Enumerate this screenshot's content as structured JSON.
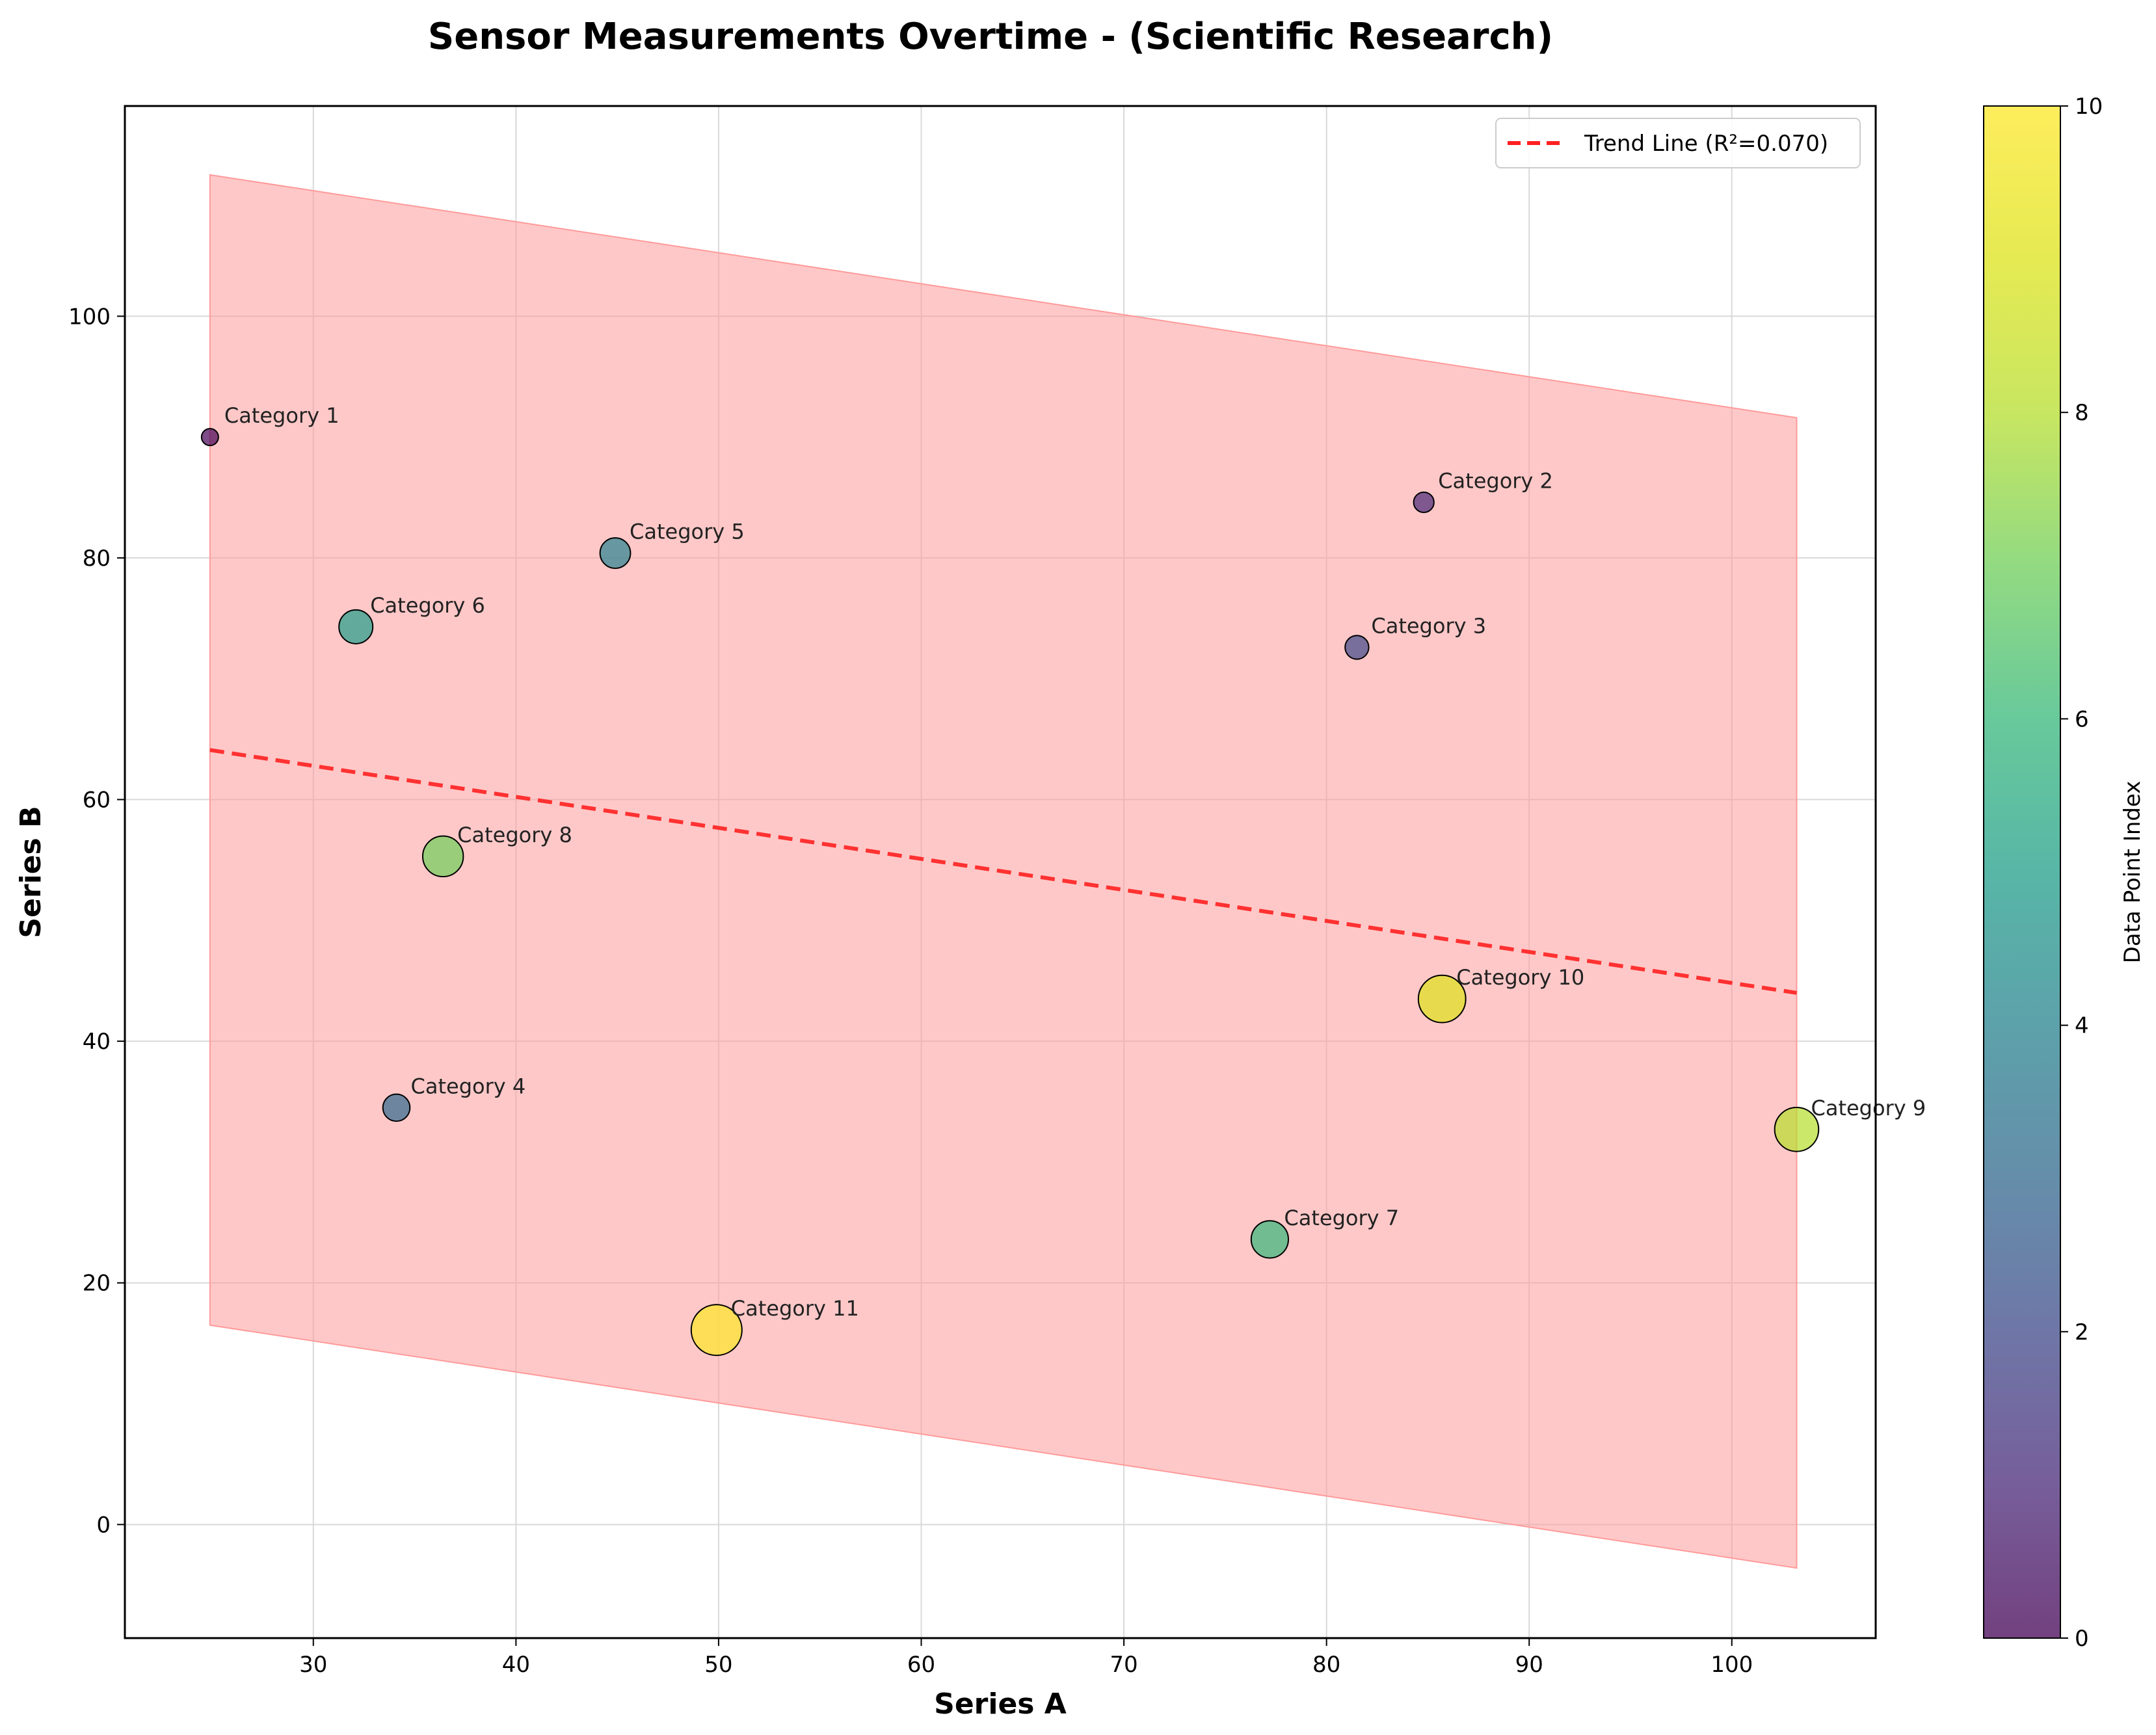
{
  "chart_data": {
    "type": "scatter",
    "title": "Sensor Measurements Overtime - (Scientific Research)",
    "xlabel": "Series A",
    "ylabel": "Series B",
    "xlim": [
      20.7,
      107.1
    ],
    "ylim": [
      -9.4,
      117.4
    ],
    "xticks": [
      30,
      40,
      50,
      60,
      70,
      80,
      90,
      100
    ],
    "yticks": [
      0,
      20,
      40,
      60,
      80,
      100
    ],
    "grid": true,
    "legend": {
      "placement": "top-right",
      "entries": [
        "Trend Line (R²=0.070)"
      ]
    },
    "points": [
      {
        "label": "Category 1",
        "x": 24.9,
        "y": 90.0,
        "index": 0
      },
      {
        "label": "Category 2",
        "x": 84.8,
        "y": 84.6,
        "index": 1
      },
      {
        "label": "Category 3",
        "x": 81.5,
        "y": 72.6,
        "index": 2
      },
      {
        "label": "Category 4",
        "x": 34.1,
        "y": 34.5,
        "index": 3
      },
      {
        "label": "Category 5",
        "x": 44.9,
        "y": 80.4,
        "index": 4
      },
      {
        "label": "Category 6",
        "x": 32.1,
        "y": 74.3,
        "index": 5
      },
      {
        "label": "Category 7",
        "x": 77.2,
        "y": 23.6,
        "index": 6
      },
      {
        "label": "Category 8",
        "x": 36.4,
        "y": 55.3,
        "index": 7
      },
      {
        "label": "Category 9",
        "x": 103.2,
        "y": 32.7,
        "index": 8
      },
      {
        "label": "Category 10",
        "x": 85.7,
        "y": 43.5,
        "index": 9
      },
      {
        "label": "Category 11",
        "x": 49.9,
        "y": 16.1,
        "index": 10
      }
    ],
    "trend_line": {
      "x": [
        24.9,
        103.2
      ],
      "y": [
        64.1,
        44.0
      ],
      "color": "#ff2020"
    },
    "confidence_band": {
      "x": [
        24.9,
        103.2
      ],
      "upper": [
        111.7,
        91.6
      ],
      "lower": [
        16.5,
        -3.6
      ],
      "color": "#ff9a9a"
    },
    "colorbar": {
      "label": "Data Point Index",
      "range": [
        0,
        10
      ],
      "ticks": [
        0,
        2,
        4,
        6,
        8,
        10
      ],
      "colormap": "viridis"
    }
  }
}
